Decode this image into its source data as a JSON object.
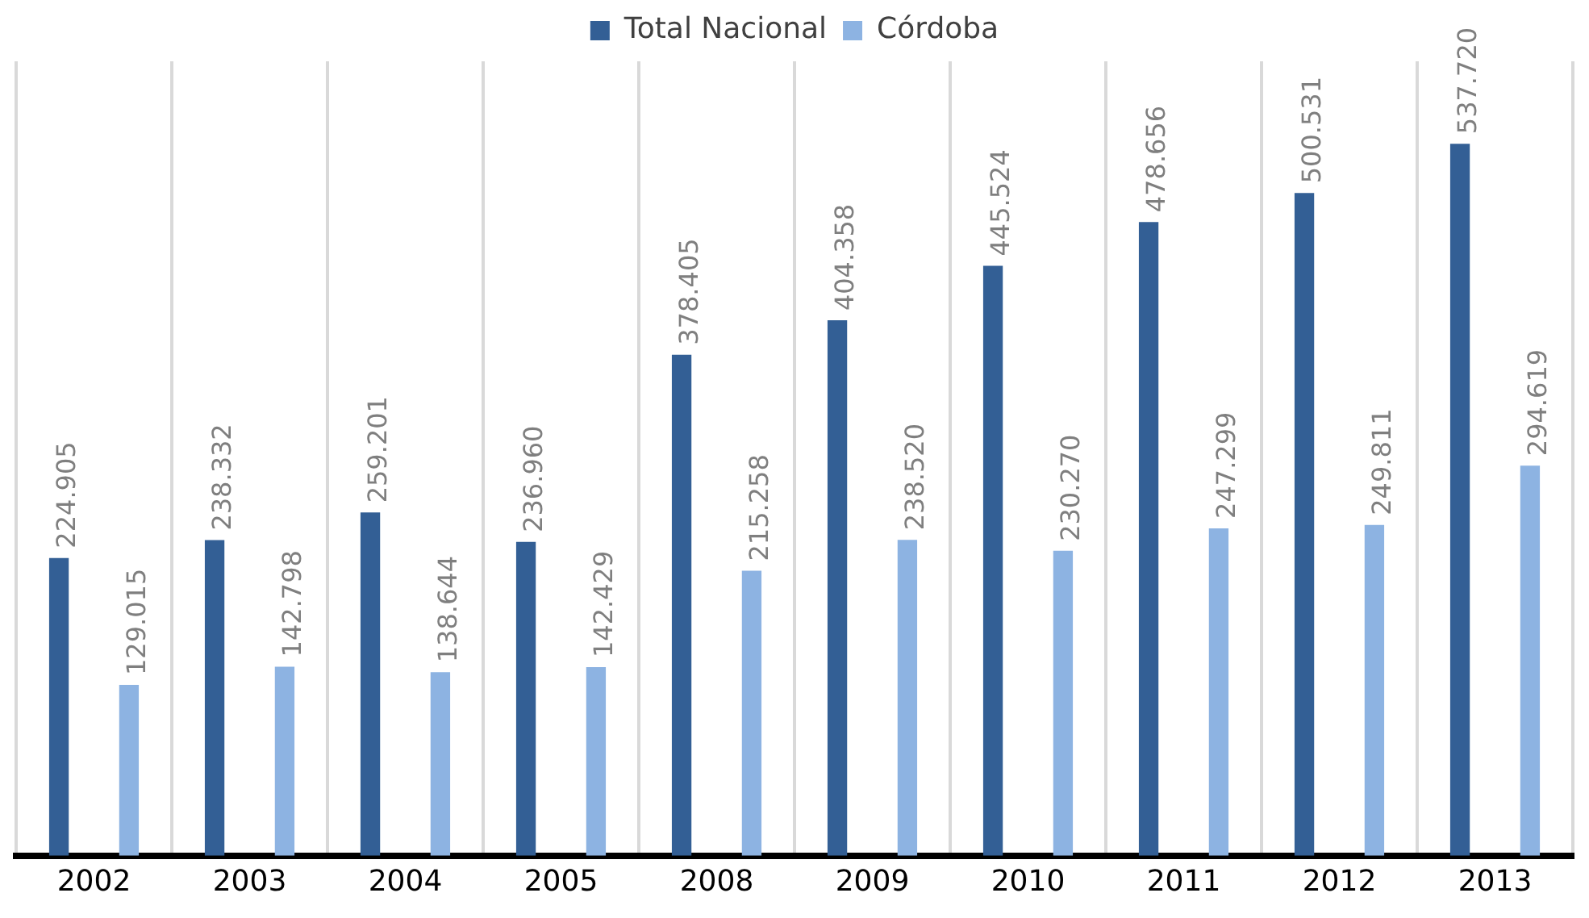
{
  "chart_data": {
    "type": "bar",
    "categories": [
      "2002",
      "2003",
      "2004",
      "2005",
      "2008",
      "2009",
      "2010",
      "2011",
      "2012",
      "2013"
    ],
    "series": [
      {
        "name": "Total Nacional",
        "color": "#335f95",
        "values": [
          224905,
          238332,
          259201,
          236960,
          378405,
          404358,
          445524,
          478656,
          500531,
          537720
        ],
        "value_labels": [
          "224.905",
          "238.332",
          "259.201",
          "236.960",
          "378.405",
          "404.358",
          "445.524",
          "478.656",
          "500.531",
          "537.720"
        ]
      },
      {
        "name": "Córdoba",
        "color": "#8db3e2",
        "values": [
          129015,
          142798,
          138644,
          142429,
          215258,
          238520,
          230270,
          247299,
          249811,
          294619
        ],
        "value_labels": [
          "129.015",
          "142.798",
          "138.644",
          "142.429",
          "215.258",
          "238.520",
          "230.270",
          "247.299",
          "249.811",
          "294.619"
        ]
      }
    ],
    "grid": "x",
    "legend": "top"
  }
}
